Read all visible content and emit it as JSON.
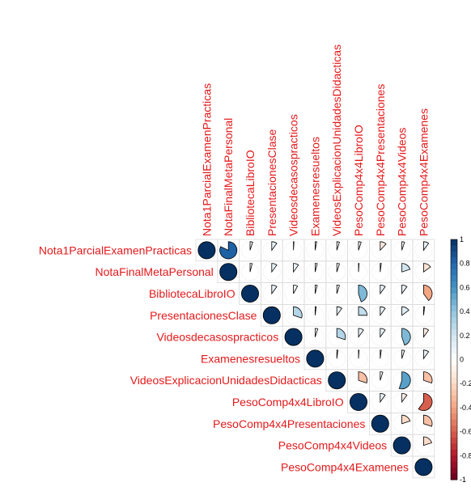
{
  "chart_data": {
    "type": "heatmap",
    "subtype": "correlation-pie-upper",
    "variables": [
      "Nota1ParcialExamenPracticas",
      "NotaFinalMetaPersonal",
      "BibliotecaLibroIO",
      "PresentacionesClase",
      "Videosdecasospracticos",
      "Examenesresueltos",
      "VideosExplicacionUnidadesDidacticas",
      "PesoComp4x4LibroIO",
      "PesoComp4x4Presentaciones",
      "PesoComp4x4Videos",
      "PesoComp4x4Examenes"
    ],
    "matrix": [
      [
        1,
        0.82,
        0.05,
        0.1,
        0.01,
        0.03,
        0.05,
        0.05,
        -0.12,
        0.05,
        0.1
      ],
      [
        0.82,
        1,
        0.04,
        0.1,
        0.1,
        0.04,
        0.05,
        0.01,
        0.02,
        0.2,
        -0.15
      ],
      [
        0.05,
        0.04,
        1,
        0.1,
        0.08,
        0.04,
        0.05,
        0.45,
        0.1,
        0.1,
        -0.4
      ],
      [
        0.1,
        0.1,
        0.1,
        1,
        0.3,
        0.02,
        0.1,
        0.25,
        0.1,
        0.15,
        0.02
      ],
      [
        0.01,
        0.1,
        0.08,
        0.3,
        1,
        0.05,
        0.3,
        0.1,
        0.1,
        0.45,
        -0.1
      ],
      [
        0.03,
        0.04,
        0.04,
        0.02,
        0.05,
        1,
        0.02,
        0.01,
        0.02,
        0.05,
        0.1
      ],
      [
        0.05,
        0.05,
        0.05,
        0.1,
        0.3,
        0.02,
        1,
        -0.3,
        0.05,
        0.55,
        -0.3
      ],
      [
        0.05,
        0.01,
        0.45,
        0.25,
        0.1,
        0.01,
        -0.3,
        1,
        0.1,
        -0.1,
        -0.6
      ],
      [
        -0.12,
        0.02,
        0.1,
        0.1,
        0.1,
        0.02,
        0.05,
        0.1,
        1,
        -0.2,
        -0.3
      ],
      [
        0.05,
        0.2,
        0.1,
        0.15,
        0.45,
        0.05,
        0.55,
        -0.1,
        -0.2,
        1,
        -0.2
      ],
      [
        0.1,
        -0.15,
        -0.4,
        0.02,
        -0.1,
        0.1,
        -0.3,
        -0.6,
        -0.3,
        -0.2,
        1
      ]
    ],
    "colorbar": {
      "ticks": [
        "1",
        "0.8",
        "0.6",
        "0.4",
        "0.2",
        "0",
        "-0.2",
        "-0.4",
        "-0.6",
        "-0.8",
        "-1"
      ],
      "range": [
        -1,
        1
      ],
      "colors": [
        "#67001F",
        "#B2182B",
        "#D6604D",
        "#F4A582",
        "#FDDBC7",
        "#FFFFFF",
        "#D1E5F0",
        "#92C5DE",
        "#4393C3",
        "#2166AC",
        "#053061"
      ]
    },
    "label_color": "#e41a1c"
  }
}
